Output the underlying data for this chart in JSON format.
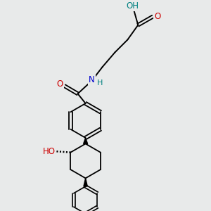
{
  "bg_color": "#e8eaea",
  "atom_colors": {
    "O": "#cc0000",
    "N": "#0000cc",
    "C": "#000000",
    "H": "#008080"
  }
}
